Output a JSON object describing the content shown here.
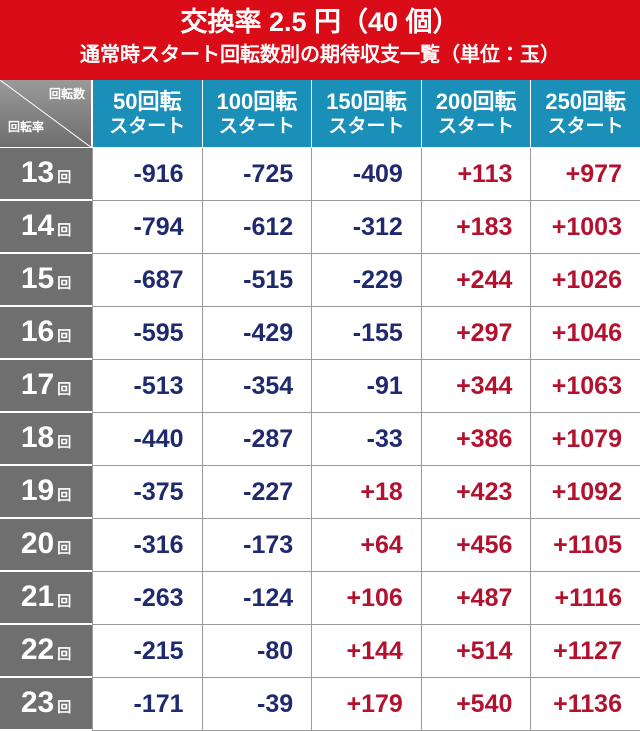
{
  "header": {
    "title": "交換率 2.5 円（40 個）",
    "subtitle": "通常時スタート回転数別の期待収支一覧（単位：玉）"
  },
  "table": {
    "corner": {
      "top": "回転数",
      "bottom": "回転率"
    },
    "columns": [
      {
        "spins": "50回転",
        "label": "スタート"
      },
      {
        "spins": "100回転",
        "label": "スタート"
      },
      {
        "spins": "150回転",
        "label": "スタート"
      },
      {
        "spins": "200回転",
        "label": "スタート"
      },
      {
        "spins": "250回転",
        "label": "スタート"
      }
    ],
    "negative_color": "#1f2a6e",
    "positive_color": "#b3122f",
    "rows": [
      {
        "rate": "13",
        "unit": "回",
        "values": [
          "-916",
          "-725",
          "-409",
          "+113",
          "+977"
        ]
      },
      {
        "rate": "14",
        "unit": "回",
        "values": [
          "-794",
          "-612",
          "-312",
          "+183",
          "+1003"
        ]
      },
      {
        "rate": "15",
        "unit": "回",
        "values": [
          "-687",
          "-515",
          "-229",
          "+244",
          "+1026"
        ]
      },
      {
        "rate": "16",
        "unit": "回",
        "values": [
          "-595",
          "-429",
          "-155",
          "+297",
          "+1046"
        ]
      },
      {
        "rate": "17",
        "unit": "回",
        "values": [
          "-513",
          "-354",
          "-91",
          "+344",
          "+1063"
        ]
      },
      {
        "rate": "18",
        "unit": "回",
        "values": [
          "-440",
          "-287",
          "-33",
          "+386",
          "+1079"
        ]
      },
      {
        "rate": "19",
        "unit": "回",
        "values": [
          "-375",
          "-227",
          "+18",
          "+423",
          "+1092"
        ]
      },
      {
        "rate": "20",
        "unit": "回",
        "values": [
          "-316",
          "-173",
          "+64",
          "+456",
          "+1105"
        ]
      },
      {
        "rate": "21",
        "unit": "回",
        "values": [
          "-263",
          "-124",
          "+106",
          "+487",
          "+1116"
        ]
      },
      {
        "rate": "22",
        "unit": "回",
        "values": [
          "-215",
          "-80",
          "+144",
          "+514",
          "+1127"
        ]
      },
      {
        "rate": "23",
        "unit": "回",
        "values": [
          "-171",
          "-39",
          "+179",
          "+540",
          "+1136"
        ]
      }
    ]
  }
}
